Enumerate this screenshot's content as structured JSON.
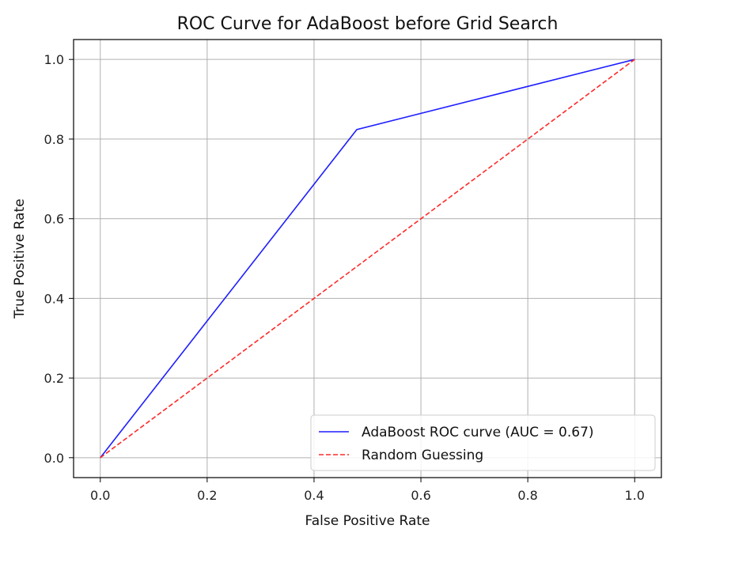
{
  "chart_data": {
    "type": "line",
    "title": "ROC Curve for AdaBoost before Grid Search",
    "xlabel": "False Positive Rate",
    "ylabel": "True Positive Rate",
    "xlim": [
      -0.05,
      1.05
    ],
    "ylim": [
      -0.05,
      1.05
    ],
    "xticks": [
      0.0,
      0.2,
      0.4,
      0.6,
      0.8,
      1.0
    ],
    "yticks": [
      0.0,
      0.2,
      0.4,
      0.6,
      0.8,
      1.0
    ],
    "xtick_labels": [
      "0.0",
      "0.2",
      "0.4",
      "0.6",
      "0.8",
      "1.0"
    ],
    "ytick_labels": [
      "0.0",
      "0.2",
      "0.4",
      "0.6",
      "0.8",
      "1.0"
    ],
    "grid": true,
    "legend_position": "lower-right",
    "series": [
      {
        "name": "AdaBoost ROC curve (AUC = 0.67)",
        "x": [
          0.0,
          0.48,
          1.0
        ],
        "y": [
          0.0,
          0.824,
          1.0
        ],
        "color": "#1f1fff",
        "linestyle": "solid"
      },
      {
        "name": "Random Guessing",
        "x": [
          0.0,
          1.0
        ],
        "y": [
          0.0,
          1.0
        ],
        "color": "#ff2a2a",
        "linestyle": "dashed"
      }
    ]
  }
}
